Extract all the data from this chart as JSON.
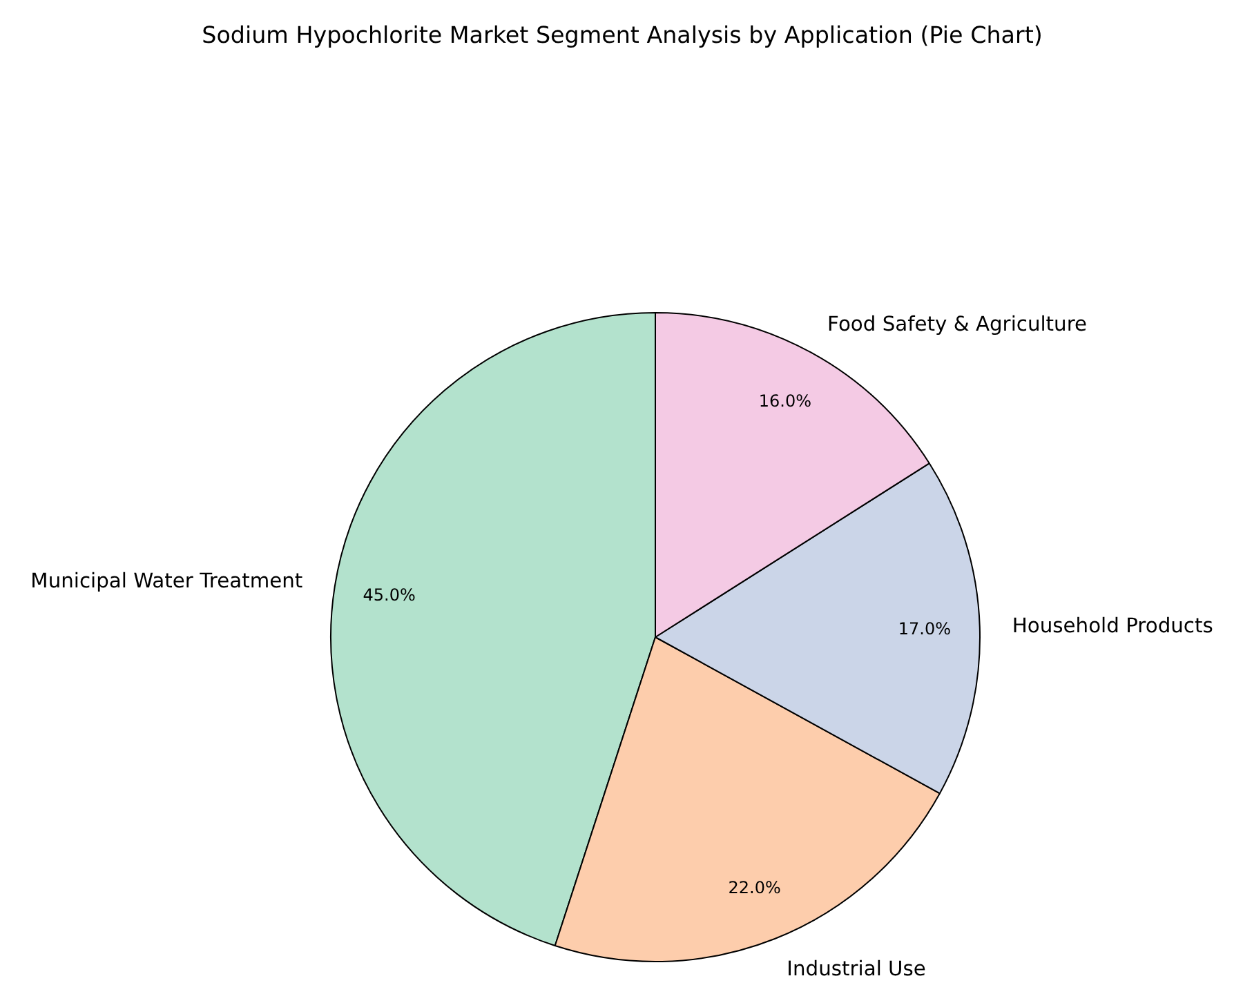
{
  "chart_data": {
    "type": "pie",
    "title": "Sodium Hypochlorite Market Segment Analysis by Application (Pie Chart)",
    "categories": [
      "Municipal Water Treatment",
      "Industrial Use",
      "Household Products",
      "Food Safety & Agriculture"
    ],
    "values": [
      45,
      22,
      17,
      16
    ],
    "colors": [
      "#b3e2cd",
      "#fdcdac",
      "#cbd5e8",
      "#f4cae4"
    ],
    "value_labels": [
      "45.0%",
      "22.0%",
      "17.0%",
      "16.0%"
    ]
  }
}
